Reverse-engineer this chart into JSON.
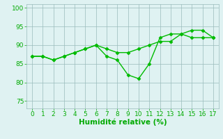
{
  "line1_x": [
    0,
    1,
    2,
    3,
    4,
    5,
    6,
    7,
    8,
    9,
    10,
    11,
    12,
    13,
    14,
    15,
    16,
    17
  ],
  "line1_y": [
    87,
    87,
    86,
    87,
    88,
    89,
    90,
    89,
    88,
    88,
    89,
    90,
    91,
    91,
    93,
    92,
    92,
    92
  ],
  "line2_x": [
    0,
    1,
    2,
    3,
    4,
    5,
    6,
    7,
    8,
    9,
    10,
    11,
    12,
    13,
    14,
    15,
    16,
    17
  ],
  "line2_y": [
    87,
    87,
    86,
    87,
    88,
    89,
    90,
    87,
    86,
    82,
    81,
    85,
    92,
    93,
    93,
    94,
    94,
    92
  ],
  "line_color": "#00bb00",
  "marker": "D",
  "markersize": 2.5,
  "linewidth": 1.0,
  "xlabel": "Humidité relative (%)",
  "xlim": [
    -0.5,
    17.5
  ],
  "ylim": [
    73,
    101
  ],
  "yticks": [
    75,
    80,
    85,
    90,
    95,
    100
  ],
  "xticks": [
    0,
    1,
    2,
    3,
    4,
    5,
    6,
    7,
    8,
    9,
    10,
    11,
    12,
    13,
    14,
    15,
    16,
    17
  ],
  "background_color": "#dff2f2",
  "grid_color": "#99bbbb",
  "tick_color": "#00aa00",
  "label_color": "#00aa00",
  "tick_fontsize": 6.5,
  "xlabel_fontsize": 7.5
}
